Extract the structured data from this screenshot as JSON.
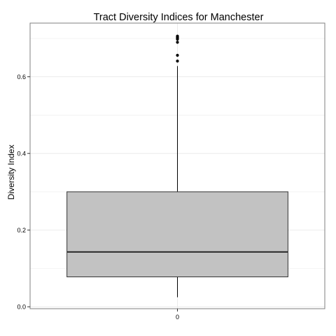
{
  "chart_data": {
    "type": "boxplot",
    "title": "Tract Diversity Indices for Manchester",
    "xlabel": "",
    "ylabel": "Diversity Index",
    "categories": [
      "0"
    ],
    "ylim": [
      -0.005,
      0.74
    ],
    "yticks": [
      0.0,
      0.2,
      0.4,
      0.6
    ],
    "ytick_labels": [
      "0.0",
      "0.2",
      "0.4",
      "0.6"
    ],
    "grid": true,
    "legend": "none",
    "boxes": [
      {
        "category": "0",
        "whisker_low": 0.025,
        "q1": 0.078,
        "median": 0.143,
        "q3": 0.3,
        "whisker_high": 0.628,
        "outliers": [
          0.641,
          0.656,
          0.69,
          0.698,
          0.701,
          0.703,
          0.706
        ]
      }
    ],
    "colors": {
      "box_fill": "#c2c2c2",
      "box_stroke": "#333333",
      "median": "#333333",
      "whisker": "#000000",
      "outlier": "#000000",
      "grid": "#ebebeb",
      "panel_border": "#7f7f7f"
    }
  }
}
